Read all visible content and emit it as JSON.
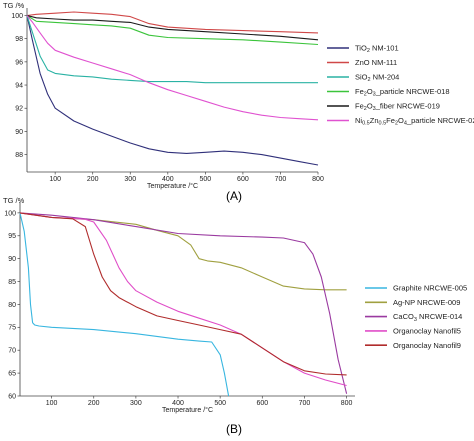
{
  "figure": {
    "caption_a": "(A)",
    "caption_b": "(B)"
  },
  "chart_data": [
    {
      "type": "line",
      "panel": "A",
      "title": "",
      "xlabel": "Temperature /°C",
      "ylabel": "TG /%",
      "xlim": [
        25,
        800
      ],
      "ylim": [
        86.5,
        100.3
      ],
      "xticks": [
        100,
        200,
        300,
        400,
        500,
        600,
        700,
        800
      ],
      "yticks": [
        88,
        90,
        92,
        94,
        96,
        98,
        100
      ],
      "grid": false,
      "legend_position": "right",
      "series": [
        {
          "name": "TiO2 NM-101",
          "name_parts": [
            "TiO",
            "2",
            " NM-101"
          ],
          "color": "#30307a",
          "x": [
            25,
            40,
            60,
            80,
            100,
            150,
            200,
            250,
            300,
            350,
            400,
            450,
            500,
            550,
            600,
            650,
            700,
            750,
            800
          ],
          "y": [
            100,
            97.8,
            95,
            93.2,
            92,
            90.9,
            90.2,
            89.6,
            89.0,
            88.5,
            88.2,
            88.1,
            88.2,
            88.3,
            88.2,
            88.0,
            87.7,
            87.4,
            87.1
          ]
        },
        {
          "name": "ZnO NM-111",
          "name_parts": [
            "ZnO NM-111"
          ],
          "color": "#d04848",
          "x": [
            25,
            50,
            100,
            150,
            200,
            250,
            300,
            350,
            400,
            500,
            600,
            700,
            800
          ],
          "y": [
            100,
            100.1,
            100.2,
            100.3,
            100.2,
            100.1,
            99.9,
            99.3,
            99.0,
            98.8,
            98.7,
            98.6,
            98.5
          ]
        },
        {
          "name": "SiO2 NM-204",
          "name_parts": [
            "SiO",
            "2",
            " NM-204"
          ],
          "color": "#2ab2a4",
          "x": [
            25,
            40,
            60,
            80,
            100,
            150,
            200,
            250,
            300,
            350,
            400,
            450,
            500,
            600,
            700,
            800
          ],
          "y": [
            100,
            98.5,
            96.5,
            95.3,
            95.0,
            94.8,
            94.7,
            94.5,
            94.4,
            94.3,
            94.3,
            94.3,
            94.2,
            94.2,
            94.2,
            94.2
          ]
        },
        {
          "name": "Fe2O3_particle NRCWE-018",
          "name_parts": [
            "Fe",
            "2",
            "O",
            "3",
            "_particle NRCWE-018"
          ],
          "color": "#3bc43b",
          "x": [
            25,
            50,
            100,
            150,
            200,
            250,
            300,
            350,
            400,
            500,
            600,
            700,
            800
          ],
          "y": [
            100,
            99.5,
            99.4,
            99.3,
            99.2,
            99.1,
            98.9,
            98.3,
            98.1,
            98.0,
            97.9,
            97.7,
            97.5
          ]
        },
        {
          "name": "Fe2O3_fiber NRCWE-019",
          "name_parts": [
            "Fe",
            "2",
            "O",
            "3",
            "_fiber NRCWE-019"
          ],
          "color": "#1a1a1a",
          "x": [
            25,
            50,
            100,
            150,
            200,
            250,
            300,
            350,
            400,
            500,
            600,
            700,
            800
          ],
          "y": [
            100,
            99.8,
            99.7,
            99.6,
            99.6,
            99.5,
            99.4,
            99.0,
            98.8,
            98.6,
            98.4,
            98.2,
            97.9
          ]
        },
        {
          "name": "Ni0.5Zn0.5Fe2O4_particle NRCWE-020",
          "name_parts": [
            "Ni",
            "0.5",
            "Zn",
            "0.5",
            "Fe",
            "2",
            "O",
            "4",
            "_particle NRCWE-020"
          ],
          "color": "#e052d0",
          "x": [
            25,
            40,
            60,
            80,
            100,
            150,
            200,
            250,
            300,
            350,
            400,
            450,
            500,
            550,
            600,
            650,
            700,
            750,
            800
          ],
          "y": [
            100,
            99.4,
            98.5,
            97.6,
            97.0,
            96.4,
            95.9,
            95.4,
            94.9,
            94.2,
            93.6,
            93.1,
            92.6,
            92.1,
            91.7,
            91.4,
            91.2,
            91.1,
            91.0
          ]
        }
      ]
    },
    {
      "type": "line",
      "panel": "B",
      "title": "",
      "xlabel": "Temperature /°C",
      "ylabel": "TG /%",
      "xlim": [
        25,
        820
      ],
      "ylim": [
        60,
        101.5
      ],
      "xticks": [
        100,
        200,
        300,
        400,
        500,
        600,
        700,
        800
      ],
      "yticks": [
        60,
        65,
        70,
        75,
        80,
        85,
        90,
        95,
        100
      ],
      "grid": false,
      "legend_position": "right",
      "series": [
        {
          "name": "Graphite NRCWE-005",
          "name_parts": [
            "Graphite NRCWE-005"
          ],
          "color": "#38b6e0",
          "x": [
            25,
            35,
            45,
            50,
            55,
            60,
            70,
            100,
            200,
            300,
            400,
            450,
            480,
            500,
            510,
            520
          ],
          "y": [
            100,
            96,
            88,
            80,
            76,
            75.5,
            75.3,
            75,
            74.5,
            73.6,
            72.4,
            72.0,
            71.8,
            69,
            65,
            60
          ]
        },
        {
          "name": "Ag-NP NRCWE-009",
          "name_parts": [
            "Ag-NP NRCWE-009"
          ],
          "color": "#a0a040",
          "x": [
            25,
            100,
            200,
            300,
            350,
            400,
            430,
            450,
            470,
            500,
            550,
            600,
            650,
            700,
            750,
            800
          ],
          "y": [
            100,
            99.0,
            98.5,
            97.5,
            96.2,
            95.0,
            93.0,
            90.0,
            89.5,
            89.2,
            88.0,
            86.0,
            84.0,
            83.4,
            83.2,
            83.2
          ]
        },
        {
          "name": "CaCO3 NRCWE-014",
          "name_parts": [
            "CaCO",
            "3",
            " NRCWE-014"
          ],
          "color": "#9a3aa0",
          "x": [
            25,
            100,
            200,
            300,
            400,
            500,
            600,
            650,
            700,
            720,
            740,
            760,
            780,
            800
          ],
          "y": [
            100,
            99.5,
            98.5,
            97.0,
            95.5,
            95.0,
            94.7,
            94.5,
            93.5,
            91.0,
            86.0,
            78.0,
            68.0,
            60.5
          ]
        },
        {
          "name": "Organoclay Nanofil5",
          "name_parts": [
            "Organoclay Nanofil5"
          ],
          "color": "#e04ec8",
          "x": [
            25,
            100,
            150,
            180,
            200,
            230,
            260,
            280,
            300,
            350,
            400,
            450,
            500,
            550,
            600,
            650,
            700,
            750,
            800
          ],
          "y": [
            100,
            99.0,
            98.8,
            98.6,
            98.0,
            94.0,
            88.0,
            85.0,
            83.0,
            80.5,
            78.5,
            77.0,
            75.5,
            73.5,
            70.5,
            67.5,
            65.0,
            63.5,
            62.3
          ]
        },
        {
          "name": "Organoclay Nanofil9",
          "name_parts": [
            "Organoclay Nanofil9"
          ],
          "color": "#b02c2c",
          "x": [
            25,
            100,
            150,
            180,
            200,
            220,
            240,
            260,
            300,
            350,
            400,
            450,
            500,
            550,
            600,
            650,
            700,
            750,
            800
          ],
          "y": [
            100,
            99.0,
            98.7,
            97.0,
            91.0,
            86.0,
            83.0,
            81.5,
            79.5,
            77.5,
            76.5,
            75.5,
            74.5,
            73.5,
            70.5,
            67.5,
            65.5,
            64.8,
            64.6
          ]
        }
      ]
    }
  ]
}
